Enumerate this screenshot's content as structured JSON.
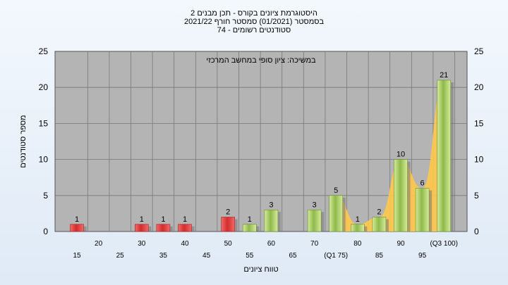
{
  "chart_data": {
    "type": "bar",
    "title_lines": [
      "היסטוגרמת ציונים בקורס - תכן מבנים 2",
      "בסמסטר  (01/2021)  סמסטר חורף 2021/22",
      "סטודנטים רשומים - 74"
    ],
    "annotation": "במשיכה: ציון סופי במחשב המרכזי",
    "xlabel": "טווח ציונים",
    "ylabel": "מספר סטודנטים",
    "ylim": [
      0,
      25
    ],
    "yticks": [
      0,
      5,
      10,
      15,
      20,
      25
    ],
    "grid": true,
    "categories": [
      "15",
      "20",
      "25",
      "30",
      "35",
      "40",
      "45",
      "50",
      "55",
      "60",
      "65",
      "70",
      "(Q1 75)",
      "80",
      "85",
      "90",
      "95",
      "(Q3 100)"
    ],
    "values": [
      1,
      0,
      0,
      1,
      1,
      1,
      0,
      2,
      1,
      3,
      0,
      3,
      5,
      1,
      2,
      10,
      6,
      21
    ],
    "bar_colors": [
      "#e23b3b",
      "#e23b3b",
      "#e23b3b",
      "#e23b3b",
      "#e23b3b",
      "#e23b3b",
      "#e23b3b",
      "#e23b3b",
      "#9bc455",
      "#9bc455",
      "#9bc455",
      "#9bc455",
      "#9bc455",
      "#9bc455",
      "#9bc455",
      "#9bc455",
      "#9bc455",
      "#9bc455"
    ],
    "highlight_area": {
      "color": "#ffc84a",
      "from_category": "(Q1 75)",
      "to_category": "(Q3 100)"
    }
  }
}
